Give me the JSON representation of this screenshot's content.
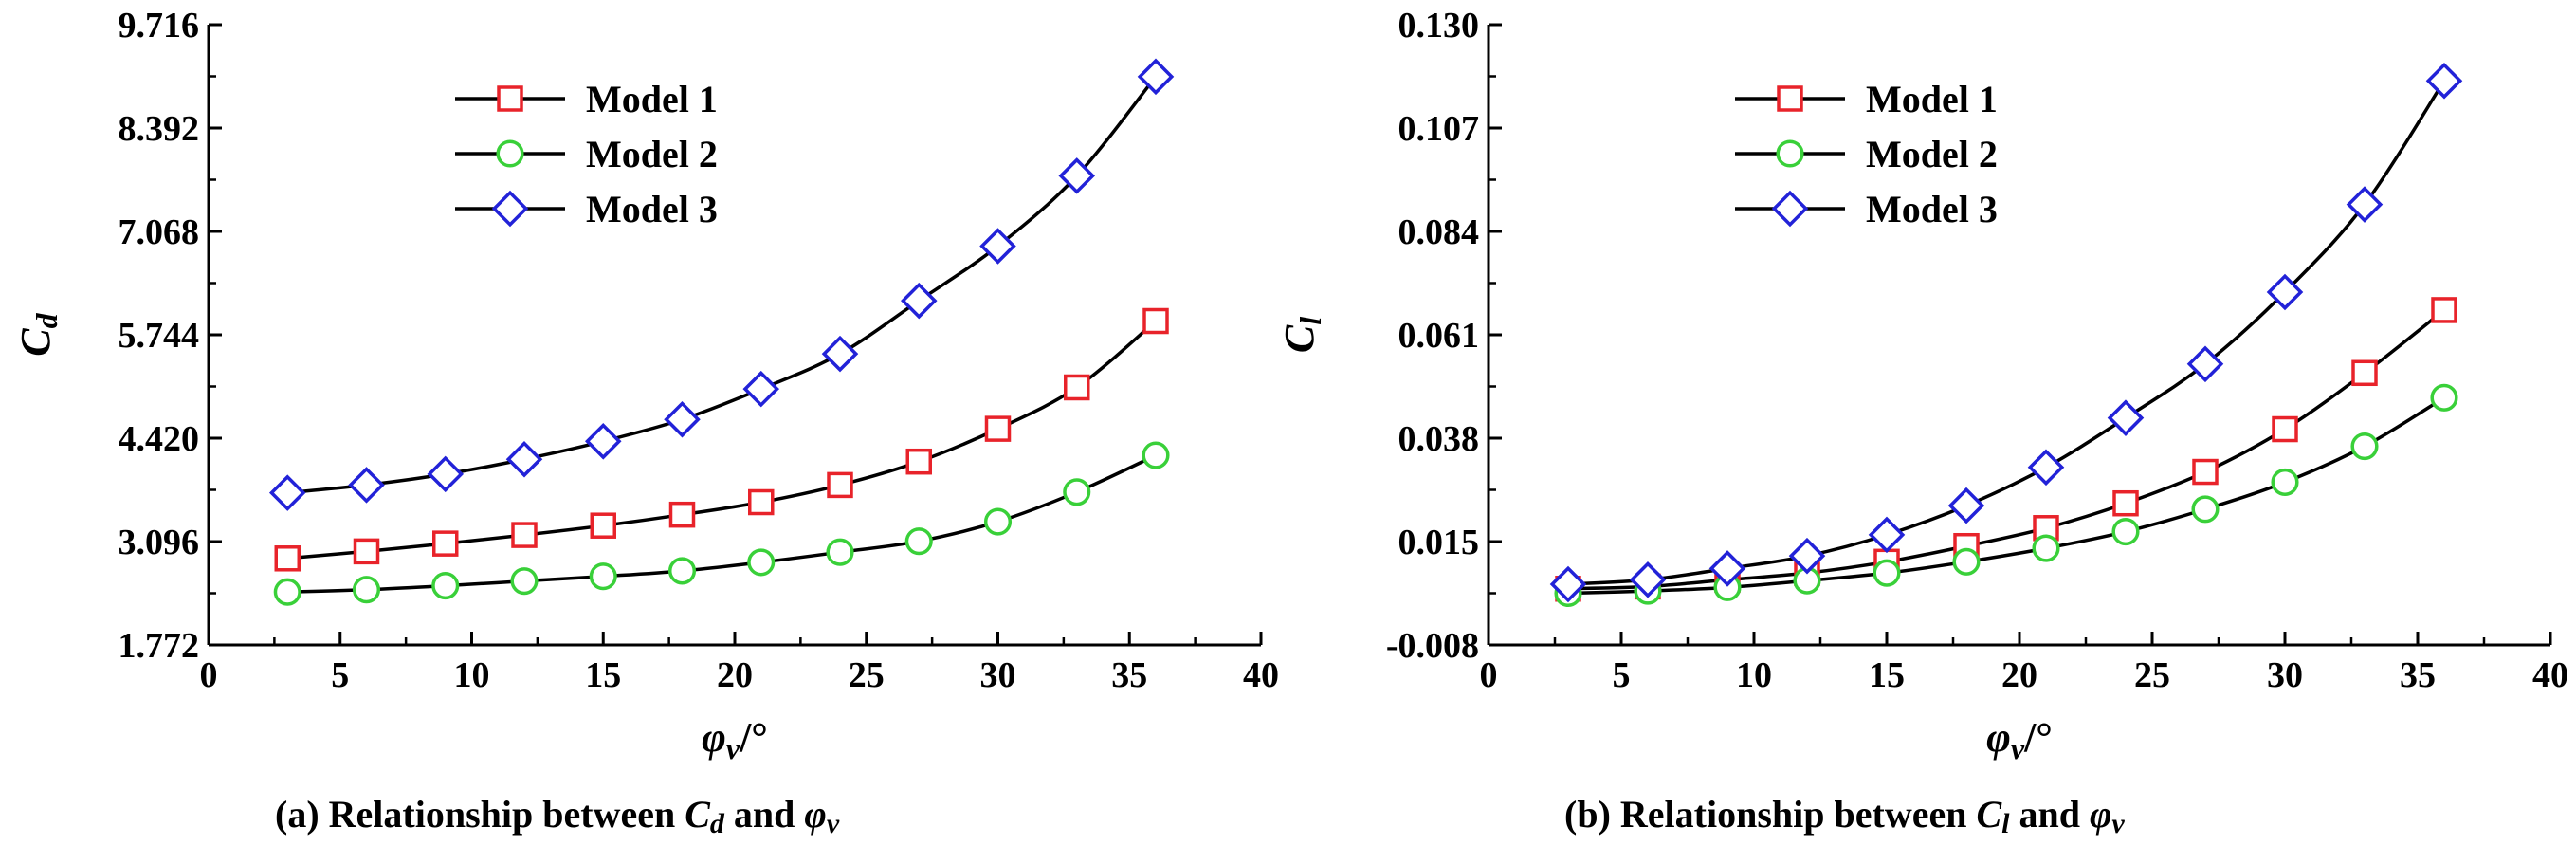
{
  "chart_data": [
    {
      "type": "line",
      "caption": {
        "prefix": "(a)  Relationship between ",
        "sym1": "C",
        "sym1_sub": "d",
        "mid": " and ",
        "sym2": "φ",
        "sym2_sub": "v"
      },
      "ylabel": {
        "main": "C",
        "sub": "d"
      },
      "xlabel": {
        "main": "φ",
        "sub": "v",
        "unit": "/°"
      },
      "xlim": [
        0,
        40
      ],
      "ylim": [
        1.772,
        9.716
      ],
      "xticks": [
        "0",
        "5",
        "10",
        "15",
        "20",
        "25",
        "30",
        "35",
        "40"
      ],
      "yticks": [
        "1.772",
        "3.096",
        "4.420",
        "5.744",
        "7.068",
        "8.392",
        "9.716"
      ],
      "x": [
        3,
        6,
        9,
        12,
        15,
        18,
        21,
        24,
        27,
        30,
        33,
        36
      ],
      "series": [
        {
          "name": "Model 1",
          "marker": "square",
          "color": "#e8232a",
          "values": [
            2.88,
            2.97,
            3.07,
            3.18,
            3.3,
            3.44,
            3.6,
            3.82,
            4.12,
            4.54,
            5.07,
            5.92
          ]
        },
        {
          "name": "Model 2",
          "marker": "circle",
          "color": "#39d039",
          "values": [
            2.45,
            2.48,
            2.53,
            2.59,
            2.65,
            2.72,
            2.83,
            2.96,
            3.1,
            3.35,
            3.73,
            4.2
          ]
        },
        {
          "name": "Model 3",
          "marker": "diamond",
          "color": "#2222d8",
          "values": [
            3.72,
            3.82,
            3.96,
            4.15,
            4.38,
            4.66,
            5.05,
            5.5,
            6.18,
            6.88,
            7.78,
            9.05
          ]
        }
      ],
      "legend_position": "top-left"
    },
    {
      "type": "line",
      "caption": {
        "prefix": "(b)  Relationship between ",
        "sym1": "C",
        "sym1_sub": "l",
        "mid": " and ",
        "sym2": "φ",
        "sym2_sub": "v"
      },
      "ylabel": {
        "main": "C",
        "sub": "l"
      },
      "xlabel": {
        "main": "φ",
        "sub": "v",
        "unit": "/°"
      },
      "xlim": [
        0,
        40
      ],
      "ylim": [
        -0.008,
        0.13
      ],
      "xticks": [
        "0",
        "5",
        "10",
        "15",
        "20",
        "25",
        "30",
        "35",
        "40"
      ],
      "yticks": [
        "-0.008",
        "0.015",
        "0.038",
        "0.061",
        "0.084",
        "0.107",
        "0.130"
      ],
      "x": [
        3,
        6,
        9,
        12,
        15,
        18,
        21,
        24,
        27,
        30,
        33,
        36
      ],
      "series": [
        {
          "name": "Model 1",
          "marker": "square",
          "color": "#e8232a",
          "values": [
            0.0045,
            0.005,
            0.0065,
            0.008,
            0.0105,
            0.014,
            0.018,
            0.0235,
            0.0305,
            0.04,
            0.0525,
            0.0665
          ]
        },
        {
          "name": "Model 2",
          "marker": "circle",
          "color": "#39d039",
          "values": [
            0.0035,
            0.004,
            0.0048,
            0.0063,
            0.008,
            0.0105,
            0.0135,
            0.0172,
            0.0222,
            0.0282,
            0.0362,
            0.047
          ]
        },
        {
          "name": "Model 3",
          "marker": "diamond",
          "color": "#2222d8",
          "values": [
            0.0055,
            0.0065,
            0.009,
            0.0118,
            0.0165,
            0.023,
            0.0315,
            0.0425,
            0.0545,
            0.0705,
            0.09,
            0.1175
          ]
        }
      ],
      "legend_position": "top-left"
    }
  ]
}
